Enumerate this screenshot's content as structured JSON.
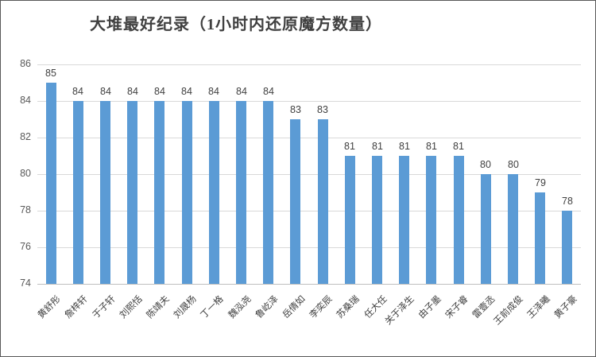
{
  "chart_data": {
    "type": "bar",
    "title": "大堆最好纪录（1小时内还原魔方数量）",
    "categories": [
      "黄舒彤",
      "詹梓轩",
      "于子轩",
      "刘熙恬",
      "陈靖夫",
      "刘晟杨",
      "丁一格",
      "魏泓尧",
      "鲁屹泽",
      "岳倩如",
      "李奕辰",
      "苏桑瑞",
      "任大任",
      "关于泽生",
      "由子墨",
      "宋子睿",
      "雷壹丞",
      "王前成俊",
      "王泽曦",
      "黄子豪"
    ],
    "values": [
      85,
      84,
      84,
      84,
      84,
      84,
      84,
      84,
      84,
      83,
      83,
      81,
      81,
      81,
      81,
      81,
      80,
      80,
      79,
      78
    ],
    "xlabel": "",
    "ylabel": "",
    "ylim": [
      74,
      86
    ],
    "yticks": [
      74,
      76,
      78,
      80,
      82,
      84,
      86
    ],
    "grid": "horizontal",
    "legend": "none",
    "data_labels": true,
    "colors": {
      "bar": "#5b9bd5",
      "gridline": "#d9d9d9",
      "axis_line": "#bfbfbf",
      "title_text": "#404040",
      "value_label_text": "#404040",
      "tick_label_text": "#595959",
      "category_label_text": "#3f3f3f",
      "background": "#ffffff",
      "border": "#595959"
    }
  }
}
